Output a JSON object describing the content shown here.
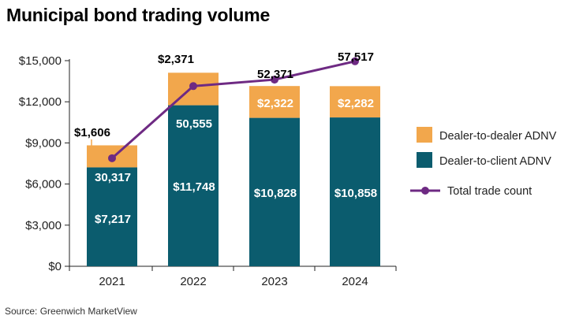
{
  "title": "Municipal bond trading volume",
  "source": "Source: Greenwich MarketView",
  "colors": {
    "dealer_to_dealer": "#f2a74c",
    "dealer_to_client": "#0b5c6e",
    "trade_count": "#6e2a83",
    "axis": "#222222",
    "grid": "#dddddd"
  },
  "chart_data": {
    "type": "bar",
    "stacked": true,
    "categories": [
      "2021",
      "2022",
      "2023",
      "2024"
    ],
    "ylim": [
      0,
      15000
    ],
    "yticks": [
      0,
      3000,
      6000,
      9000,
      12000,
      15000
    ],
    "ytick_labels": [
      "$0",
      "$3,000",
      "$6,000",
      "$9,000",
      "$12,000",
      "$15,000"
    ],
    "series": [
      {
        "name": "Dealer-to-client ADNV",
        "values": [
          7217,
          11748,
          10828,
          10858
        ],
        "labels": [
          "$7,217",
          "$11,748",
          "$10,828",
          "$10,858"
        ]
      },
      {
        "name": "Dealer-to-dealer ADNV",
        "values": [
          1606,
          2371,
          2322,
          2282
        ],
        "labels": [
          "$1,606",
          "$2,371",
          "$2,322",
          "$2,282"
        ]
      }
    ],
    "line_series": {
      "name": "Total trade count",
      "values": [
        30317,
        50555,
        52371,
        57517
      ],
      "labels": [
        "30,317",
        "50,555",
        "52,371",
        "57,517"
      ]
    },
    "legend": [
      "Dealer-to-dealer ADNV",
      "Dealer-to-client ADNV",
      "Total trade count"
    ],
    "legend_position": "right"
  }
}
